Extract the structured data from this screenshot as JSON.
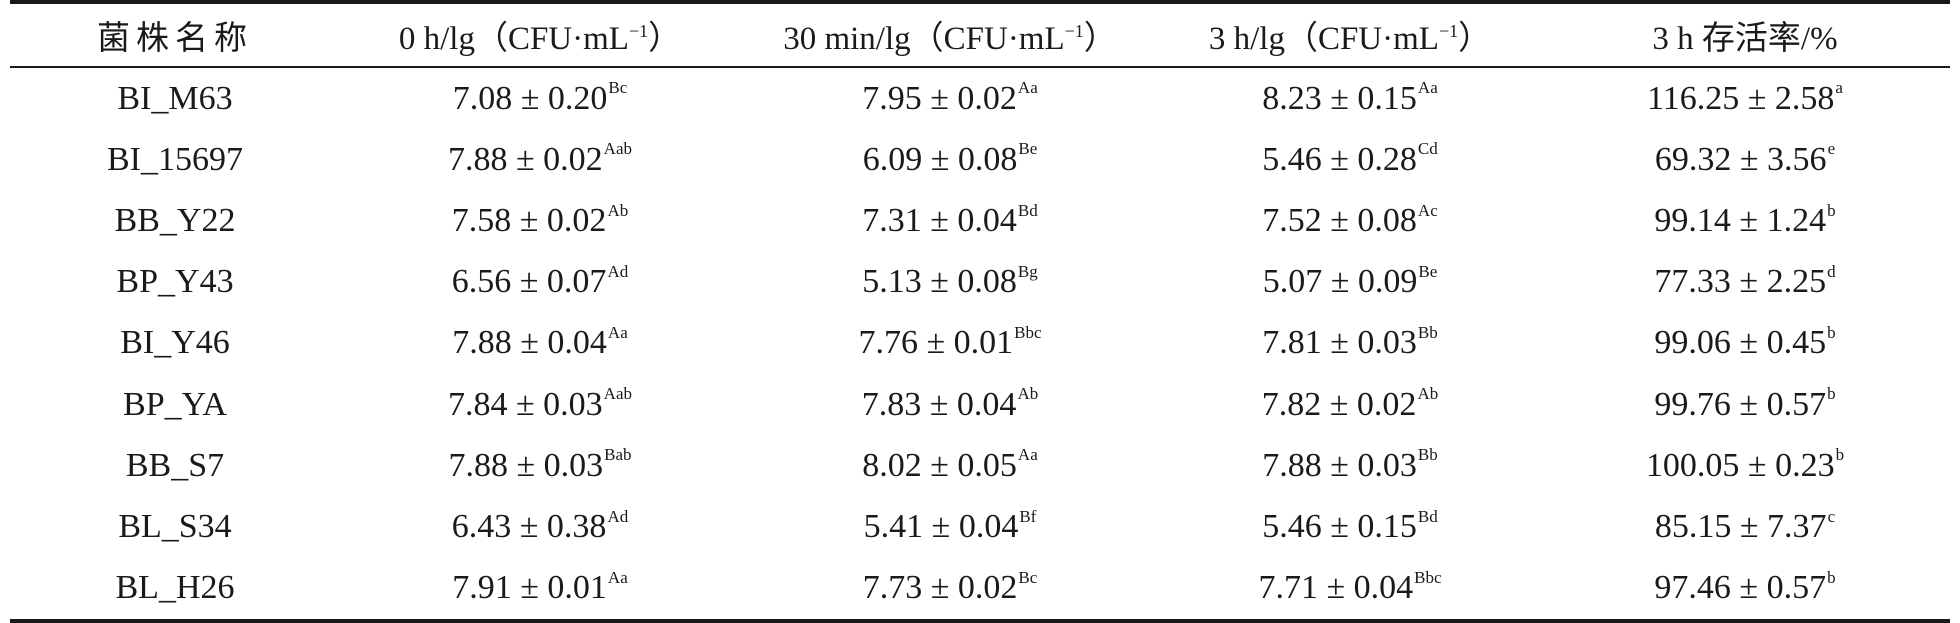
{
  "table": {
    "headers": [
      "菌株名称",
      "0 h/lg（CFU·mL",
      "30 min/lg（CFU·mL",
      "3 h/lg（CFU·mL",
      "3 h 存活率/%"
    ],
    "header_unit_sup": "−1",
    "header_unit_close": "）",
    "rows": [
      {
        "strain": "BI_M63",
        "c0h": {
          "value": "7.08 ± 0.20",
          "sig": "Bc"
        },
        "c30min": {
          "value": "7.95 ± 0.02",
          "sig": "Aa"
        },
        "c3h": {
          "value": "8.23 ± 0.15",
          "sig": "Aa"
        },
        "survival": {
          "value": "116.25 ± 2.58",
          "sig": "a"
        }
      },
      {
        "strain": "BI_15697",
        "c0h": {
          "value": "7.88 ± 0.02",
          "sig": "Aab"
        },
        "c30min": {
          "value": "6.09 ± 0.08",
          "sig": "Be"
        },
        "c3h": {
          "value": "5.46 ± 0.28",
          "sig": "Cd"
        },
        "survival": {
          "value": "69.32 ± 3.56",
          "sig": "e"
        }
      },
      {
        "strain": "BB_Y22",
        "c0h": {
          "value": "7.58 ± 0.02",
          "sig": "Ab"
        },
        "c30min": {
          "value": "7.31 ± 0.04",
          "sig": "Bd"
        },
        "c3h": {
          "value": "7.52 ± 0.08",
          "sig": "Ac"
        },
        "survival": {
          "value": "99.14 ± 1.24",
          "sig": "b"
        }
      },
      {
        "strain": "BP_Y43",
        "c0h": {
          "value": "6.56 ± 0.07",
          "sig": "Ad"
        },
        "c30min": {
          "value": "5.13 ± 0.08",
          "sig": "Bg"
        },
        "c3h": {
          "value": "5.07 ± 0.09",
          "sig": "Be"
        },
        "survival": {
          "value": "77.33 ± 2.25",
          "sig": "d"
        }
      },
      {
        "strain": "BI_Y46",
        "c0h": {
          "value": "7.88 ± 0.04",
          "sig": "Aa"
        },
        "c30min": {
          "value": "7.76 ± 0.01",
          "sig": "Bbc"
        },
        "c3h": {
          "value": "7.81 ± 0.03",
          "sig": "Bb"
        },
        "survival": {
          "value": "99.06 ± 0.45",
          "sig": "b"
        }
      },
      {
        "strain": "BP_YA",
        "c0h": {
          "value": "7.84 ± 0.03",
          "sig": "Aab"
        },
        "c30min": {
          "value": "7.83 ± 0.04",
          "sig": "Ab"
        },
        "c3h": {
          "value": "7.82 ± 0.02",
          "sig": "Ab"
        },
        "survival": {
          "value": "99.76 ± 0.57",
          "sig": "b"
        }
      },
      {
        "strain": "BB_S7",
        "c0h": {
          "value": "7.88 ± 0.03",
          "sig": "Bab"
        },
        "c30min": {
          "value": "8.02 ± 0.05",
          "sig": "Aa"
        },
        "c3h": {
          "value": "7.88 ± 0.03",
          "sig": "Bb"
        },
        "survival": {
          "value": "100.05 ± 0.23",
          "sig": "b"
        }
      },
      {
        "strain": "BL_S34",
        "c0h": {
          "value": "6.43 ± 0.38",
          "sig": "Ad"
        },
        "c30min": {
          "value": "5.41 ± 0.04",
          "sig": "Bf"
        },
        "c3h": {
          "value": "5.46 ± 0.15",
          "sig": "Bd"
        },
        "survival": {
          "value": "85.15 ± 7.37",
          "sig": "c"
        }
      },
      {
        "strain": "BL_H26",
        "c0h": {
          "value": "7.91 ± 0.01",
          "sig": "Aa"
        },
        "c30min": {
          "value": "7.73 ± 0.02",
          "sig": "Bc"
        },
        "c3h": {
          "value": "7.71 ± 0.04",
          "sig": "Bbc"
        },
        "survival": {
          "value": "97.46 ± 0.57",
          "sig": "b"
        }
      }
    ]
  }
}
